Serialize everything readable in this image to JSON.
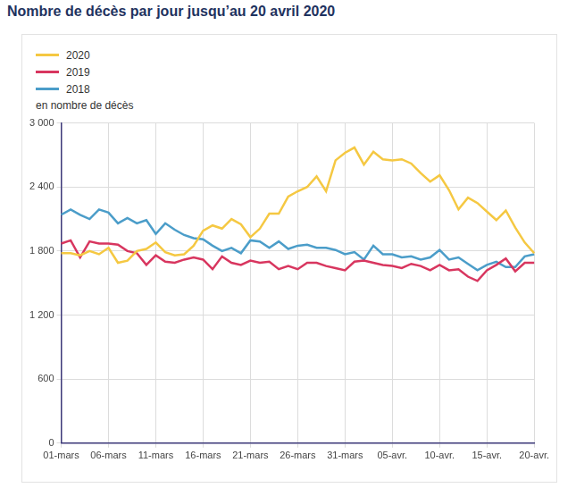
{
  "chart_data": {
    "type": "line",
    "title": "Nombre de décès par jour jusqu’au 20 avril 2020",
    "y_label": "en nombre de décès",
    "categories": [
      "01-mars",
      null,
      null,
      null,
      null,
      "06-mars",
      null,
      null,
      null,
      null,
      "11-mars",
      null,
      null,
      null,
      null,
      "16-mars",
      null,
      null,
      null,
      null,
      "21-mars",
      null,
      null,
      null,
      null,
      "26-mars",
      null,
      null,
      null,
      null,
      "31-mars",
      null,
      null,
      null,
      null,
      "05-avr.",
      null,
      null,
      null,
      null,
      "10-avr.",
      null,
      null,
      null,
      null,
      "15-avr.",
      null,
      null,
      null,
      null,
      "20-avr."
    ],
    "series": [
      {
        "name": "2020",
        "color": "#f5c842",
        "values": [
          1780,
          1780,
          1760,
          1800,
          1770,
          1830,
          1690,
          1710,
          1800,
          1820,
          1880,
          1790,
          1760,
          1770,
          1850,
          1990,
          2040,
          2010,
          2100,
          2050,
          1930,
          2010,
          2150,
          2150,
          2310,
          2360,
          2400,
          2500,
          2360,
          2650,
          2720,
          2770,
          2610,
          2730,
          2660,
          2650,
          2660,
          2620,
          2530,
          2450,
          2510,
          2370,
          2190,
          2300,
          2250,
          2170,
          2090,
          2180,
          2020,
          1880,
          1780
        ]
      },
      {
        "name": "2019",
        "color": "#d8365f",
        "values": [
          1870,
          1900,
          1740,
          1890,
          1870,
          1870,
          1860,
          1800,
          1780,
          1670,
          1760,
          1700,
          1690,
          1720,
          1740,
          1720,
          1630,
          1750,
          1690,
          1670,
          1710,
          1690,
          1700,
          1630,
          1660,
          1630,
          1690,
          1690,
          1660,
          1640,
          1620,
          1700,
          1710,
          1690,
          1670,
          1660,
          1640,
          1680,
          1660,
          1620,
          1670,
          1620,
          1630,
          1560,
          1520,
          1620,
          1670,
          1730,
          1610,
          1690,
          1690
        ]
      },
      {
        "name": "2018",
        "color": "#4b9dc9",
        "values": [
          2140,
          2190,
          2140,
          2100,
          2190,
          2160,
          2060,
          2110,
          2060,
          2090,
          1960,
          2060,
          2000,
          1950,
          1920,
          1910,
          1850,
          1800,
          1830,
          1780,
          1900,
          1890,
          1830,
          1890,
          1820,
          1850,
          1860,
          1830,
          1830,
          1810,
          1770,
          1790,
          1720,
          1850,
          1770,
          1770,
          1740,
          1750,
          1720,
          1740,
          1810,
          1720,
          1740,
          1680,
          1620,
          1670,
          1700,
          1650,
          1650,
          1750,
          1770
        ]
      }
    ],
    "ylim": [
      0,
      3000
    ],
    "yticks": [
      0,
      600,
      {
        "value": 1200,
        "label": "1 200"
      },
      {
        "value": 1800,
        "label": "1 800"
      },
      {
        "value": 2400,
        "label": "2 400"
      },
      {
        "value": 3000,
        "label": "3 000"
      }
    ],
    "grid": true,
    "legend": "top-left"
  }
}
